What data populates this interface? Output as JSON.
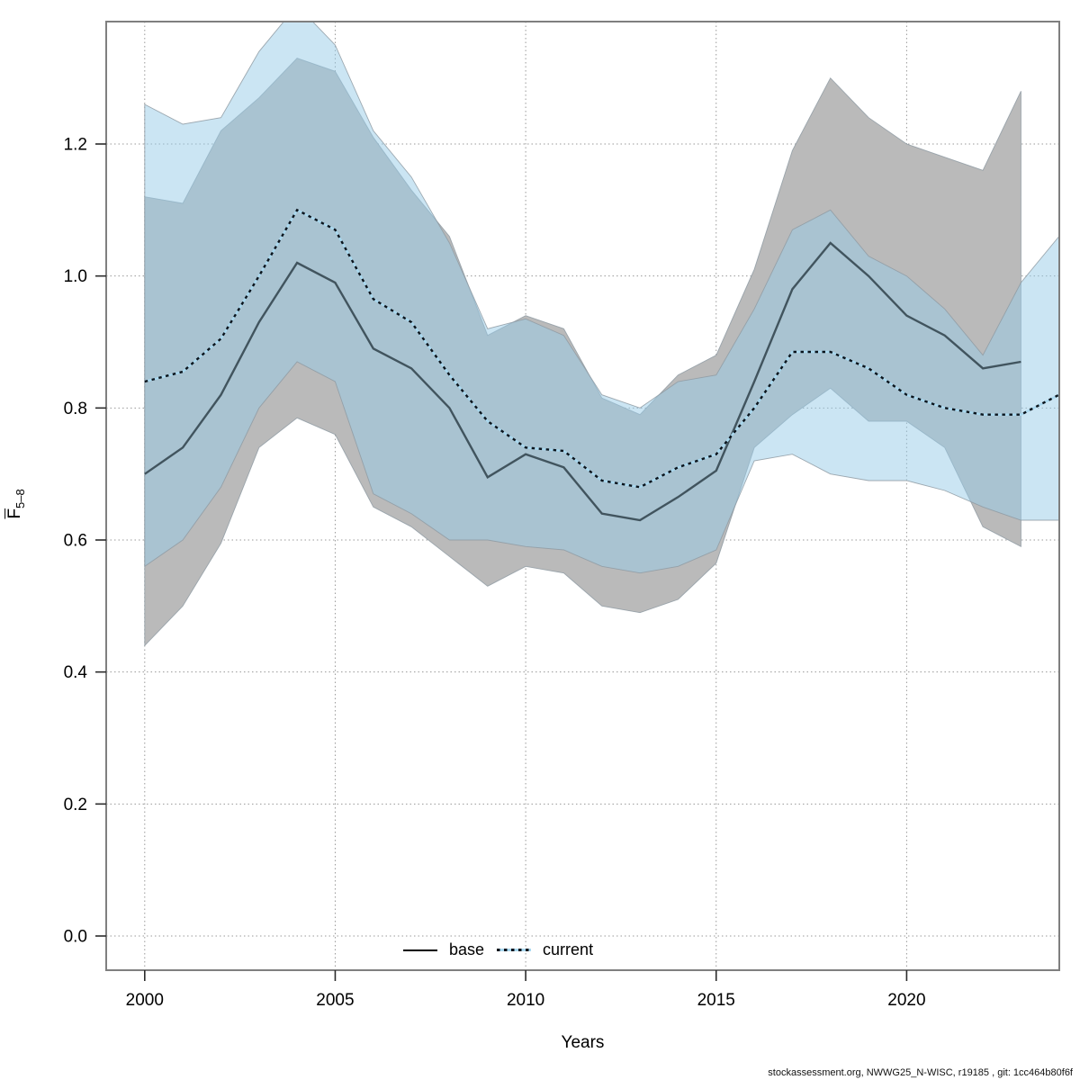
{
  "chart_data": {
    "type": "line",
    "title": "",
    "xlabel": "Years",
    "ylabel": {
      "main": "F",
      "sub": "5–8"
    },
    "x_ticks": [
      2000,
      2005,
      2010,
      2015,
      2020
    ],
    "y_ticks": [
      "0.0",
      "0.2",
      "0.4",
      "0.6",
      "0.8",
      "1.0",
      "1.2"
    ],
    "y_tick_values": [
      0.0,
      0.2,
      0.4,
      0.6,
      0.8,
      1.0,
      1.2
    ],
    "xlim": [
      2000,
      2024
    ],
    "ylim": [
      -0.06,
      1.39
    ],
    "grid": "dotted",
    "years": [
      2000,
      2001,
      2002,
      2003,
      2004,
      2005,
      2006,
      2007,
      2008,
      2009,
      2010,
      2011,
      2012,
      2013,
      2014,
      2015,
      2016,
      2017,
      2018,
      2019,
      2020,
      2021,
      2022,
      2023,
      2024
    ],
    "series": [
      {
        "name": "base",
        "line_style": "solid",
        "line_color": "#41545E",
        "band_color": "#BABABA",
        "band_opacity": 1,
        "values": [
          0.7,
          0.74,
          0.82,
          0.93,
          1.02,
          0.99,
          0.89,
          0.86,
          0.8,
          0.695,
          0.73,
          0.71,
          0.64,
          0.63,
          0.665,
          0.705,
          0.84,
          0.98,
          1.05,
          1.0,
          0.94,
          0.91,
          0.86,
          0.87
        ],
        "lo": [
          0.44,
          0.5,
          0.595,
          0.74,
          0.785,
          0.76,
          0.65,
          0.62,
          0.575,
          0.53,
          0.56,
          0.55,
          0.5,
          0.49,
          0.51,
          0.565,
          0.74,
          0.79,
          0.83,
          0.78,
          0.78,
          0.74,
          0.62,
          0.59
        ],
        "hi": [
          1.12,
          1.11,
          1.22,
          1.27,
          1.33,
          1.31,
          1.21,
          1.13,
          1.06,
          0.91,
          0.94,
          0.92,
          0.815,
          0.79,
          0.85,
          0.88,
          1.01,
          1.19,
          1.3,
          1.24,
          1.2,
          1.18,
          1.16,
          1.28
        ]
      },
      {
        "name": "current",
        "line_style": "dotted",
        "line_color": "#0B141C",
        "line_under_color": "#A9D8EF",
        "band_color": "#97CBE7",
        "band_opacity": 0.5,
        "values": [
          0.84,
          0.855,
          0.905,
          1.0,
          1.1,
          1.07,
          0.965,
          0.93,
          0.85,
          0.78,
          0.74,
          0.735,
          0.69,
          0.68,
          0.71,
          0.73,
          0.8,
          0.885,
          0.885,
          0.86,
          0.82,
          0.8,
          0.79,
          0.79,
          0.82
        ],
        "lo": [
          0.56,
          0.6,
          0.68,
          0.8,
          0.87,
          0.84,
          0.67,
          0.64,
          0.6,
          0.6,
          0.59,
          0.585,
          0.56,
          0.55,
          0.56,
          0.585,
          0.72,
          0.73,
          0.7,
          0.69,
          0.69,
          0.675,
          0.65,
          0.63,
          0.63
        ],
        "hi": [
          1.26,
          1.23,
          1.24,
          1.34,
          1.41,
          1.35,
          1.22,
          1.15,
          1.05,
          0.92,
          0.935,
          0.91,
          0.82,
          0.8,
          0.84,
          0.85,
          0.95,
          1.07,
          1.1,
          1.03,
          1.0,
          0.95,
          0.88,
          0.99,
          1.06
        ]
      }
    ],
    "legend": {
      "entries": [
        {
          "label": "base",
          "style": "solid"
        },
        {
          "label": "current",
          "style": "dotted"
        }
      ]
    },
    "footer": "stockassessment.org, NWWG25_N-WISC, r19185 , git: 1cc464b80f6f"
  },
  "layout_colors": {
    "grid": "#999999",
    "box": "#7F7F7F",
    "tick": "#2B2B2B",
    "band_outline": "#8F9BA3"
  }
}
